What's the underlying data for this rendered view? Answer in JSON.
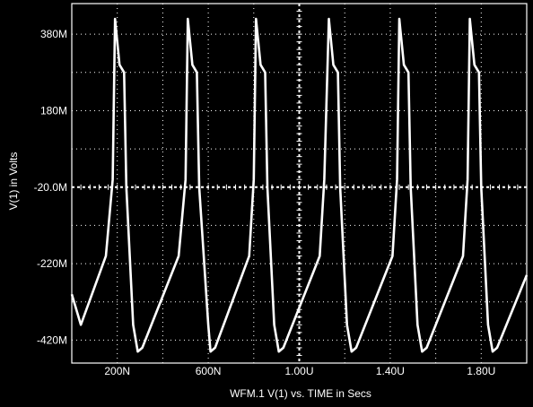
{
  "chart_data": {
    "type": "line",
    "title": "",
    "xlabel": "WFM.1   V(1) vs. TIME in Secs",
    "ylabel": "V(1) in Volts",
    "x_ticks": [
      {
        "value": 2e-07,
        "label": "200N"
      },
      {
        "value": 6e-07,
        "label": "600N"
      },
      {
        "value": 1e-06,
        "label": "1.00U"
      },
      {
        "value": 1.4e-06,
        "label": "1.40U"
      },
      {
        "value": 1.8e-06,
        "label": "1.80U"
      }
    ],
    "y_ticks": [
      {
        "value": 0.38,
        "label": "380M"
      },
      {
        "value": 0.18,
        "label": "180M"
      },
      {
        "value": -0.02,
        "label": "-20.0M"
      },
      {
        "value": -0.22,
        "label": "-220M"
      },
      {
        "value": -0.42,
        "label": "-420M"
      }
    ],
    "xlim": [
      0,
      2e-06
    ],
    "ylim": [
      -0.48,
      0.46
    ],
    "grid": true,
    "colors": {
      "background": "#000000",
      "trace": "#ffffff",
      "grid": "#ffffff"
    },
    "series": [
      {
        "name": "",
        "x": [
          0,
          4e-08,
          1.5e-07,
          1.8e-07,
          1.9e-07,
          2.1e-07,
          2.3e-07,
          2.4e-07,
          2.7e-07,
          2.9e-07,
          3.1e-07,
          4.7e-07,
          5e-07,
          5.1e-07,
          5.3e-07,
          5.5e-07,
          5.6e-07,
          6e-07,
          6.1e-07,
          6.3e-07,
          7.8e-07,
          8e-07,
          8.1e-07,
          8.3e-07,
          8.5e-07,
          8.6e-07,
          8.9e-07,
          9.1e-07,
          9.3e-07,
          1.09e-06,
          1.11e-06,
          1.13e-06,
          1.15e-06,
          1.17e-06,
          1.18e-06,
          1.21e-06,
          1.23e-06,
          1.25e-06,
          1.41e-06,
          1.43e-06,
          1.44e-06,
          1.46e-06,
          1.48e-06,
          1.49e-06,
          1.52e-06,
          1.54e-06,
          1.56e-06,
          1.72e-06,
          1.74e-06,
          1.75e-06,
          1.77e-06,
          1.79e-06,
          1.8e-06,
          1.83e-06,
          1.85e-06,
          1.87e-06,
          2e-06
        ],
        "y": [
          -0.3,
          -0.38,
          -0.2,
          0.0,
          0.42,
          0.3,
          0.28,
          -0.02,
          -0.38,
          -0.45,
          -0.44,
          -0.2,
          0.0,
          0.42,
          0.3,
          0.28,
          -0.02,
          -0.38,
          -0.45,
          -0.44,
          -0.2,
          0.0,
          0.42,
          0.3,
          0.28,
          -0.02,
          -0.38,
          -0.45,
          -0.44,
          -0.2,
          0.0,
          0.42,
          0.3,
          0.28,
          -0.02,
          -0.38,
          -0.45,
          -0.44,
          -0.2,
          0.0,
          0.42,
          0.3,
          0.28,
          -0.02,
          -0.38,
          -0.45,
          -0.44,
          -0.2,
          0.0,
          0.42,
          0.3,
          0.28,
          -0.02,
          -0.38,
          -0.45,
          -0.44,
          -0.25
        ]
      }
    ]
  }
}
